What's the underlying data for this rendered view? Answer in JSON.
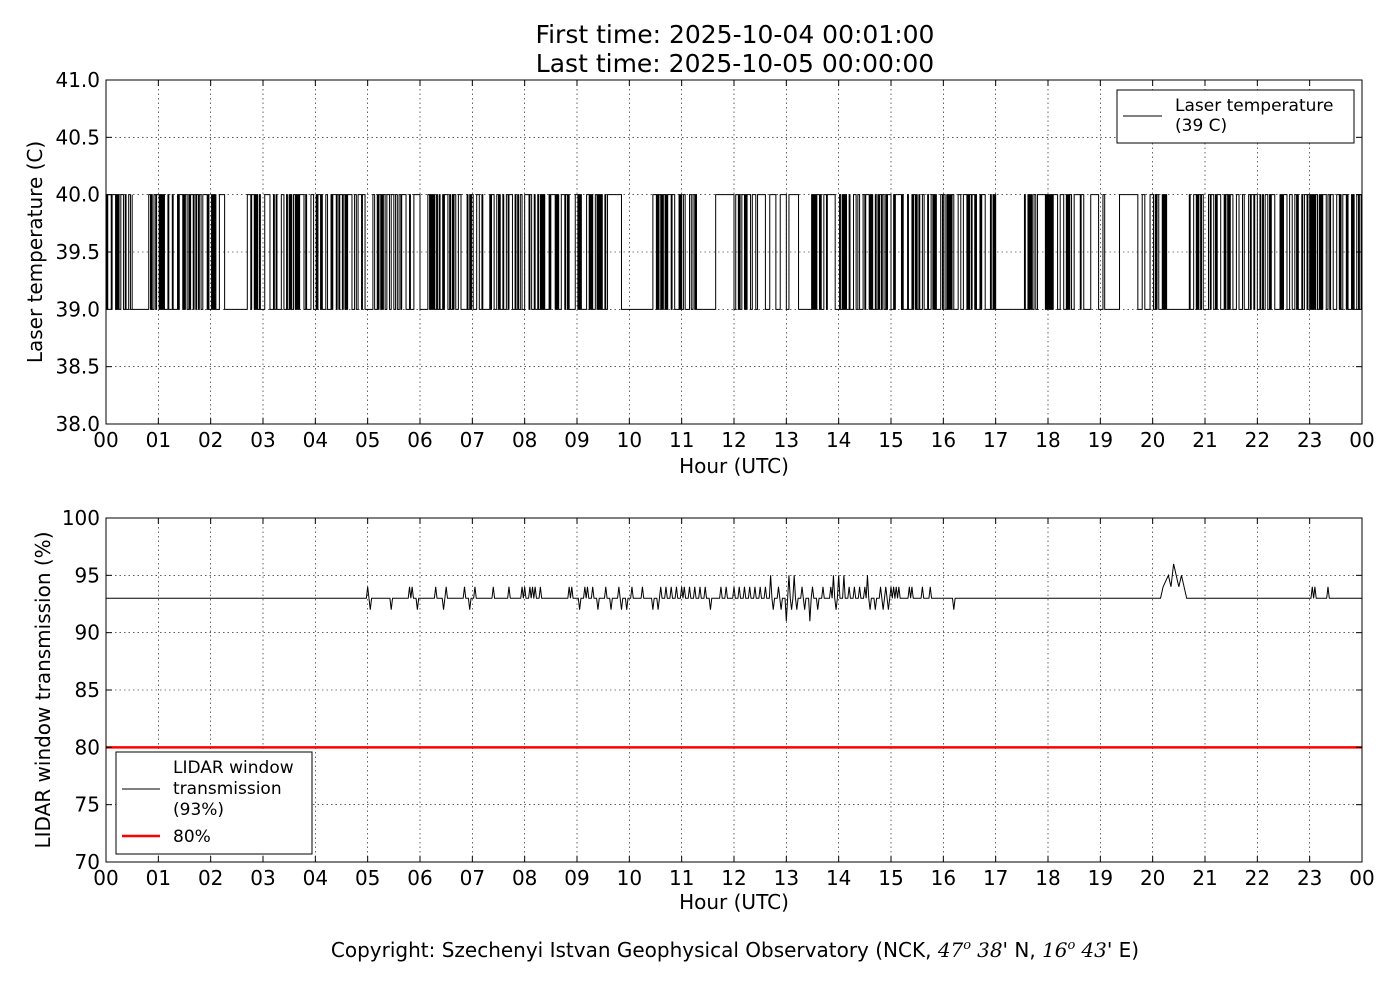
{
  "title": {
    "line1": "First time: 2025-10-04 00:01:00",
    "line2": "Last time: 2025-10-05 00:00:00"
  },
  "copyright": {
    "prefix": "Copyright: Szechenyi Istvan Geophysical Observatory (NCK, ",
    "lat_deg": "47",
    "deg_symbol": "o",
    "lat_min": "38",
    "lat_suffix": "' N, ",
    "lon_deg": "16",
    "lon_min": "43",
    "lon_suffix": "' E)"
  },
  "chart_data": [
    {
      "type": "line",
      "xlabel": "Hour (UTC)",
      "ylabel": "Laser temperature (C)",
      "xlim": [
        0,
        24
      ],
      "ylim": [
        38.0,
        41.0
      ],
      "x_ticks": [
        "00",
        "01",
        "02",
        "03",
        "04",
        "05",
        "06",
        "07",
        "08",
        "09",
        "10",
        "11",
        "12",
        "13",
        "14",
        "15",
        "16",
        "17",
        "18",
        "19",
        "20",
        "21",
        "22",
        "23",
        "00"
      ],
      "y_ticks": [
        "38.0",
        "38.5",
        "39.0",
        "39.5",
        "40.0",
        "40.5",
        "41.0"
      ],
      "grid": true,
      "legend_position": "top-right",
      "legend": [
        {
          "line1": "Laser temperature",
          "line2": "(39 C)",
          "color": "#000000"
        }
      ],
      "series": [
        {
          "description_values": "laser temperature switching between 39.0 and 40.0 C",
          "low": 39.0,
          "high": 40.0,
          "color": "#000000",
          "segments": [
            {
              "x0": 0.0,
              "x1": 0.5,
              "mode": "dense"
            },
            {
              "x0": 0.5,
              "x1": 0.75,
              "mode": "low"
            },
            {
              "x0": 0.75,
              "x1": 2.3,
              "mode": "dense"
            },
            {
              "x0": 2.3,
              "x1": 2.7,
              "mode": "low"
            },
            {
              "x0": 2.7,
              "x1": 4.5,
              "mode": "dense"
            },
            {
              "x0": 4.5,
              "x1": 6.0,
              "mode": "dense"
            },
            {
              "x0": 6.0,
              "x1": 6.15,
              "mode": "low"
            },
            {
              "x0": 6.15,
              "x1": 9.6,
              "mode": "dense"
            },
            {
              "x0": 9.6,
              "x1": 9.85,
              "mode": "high"
            },
            {
              "x0": 9.85,
              "x1": 10.45,
              "mode": "low"
            },
            {
              "x0": 10.45,
              "x1": 11.3,
              "mode": "dense"
            },
            {
              "x0": 11.3,
              "x1": 11.65,
              "mode": "low"
            },
            {
              "x0": 11.65,
              "x1": 12.0,
              "mode": "high"
            },
            {
              "x0": 12.0,
              "x1": 12.5,
              "mode": "dense"
            },
            {
              "x0": 12.5,
              "x1": 13.4,
              "mode": "sparse"
            },
            {
              "x0": 13.4,
              "x1": 17.0,
              "mode": "dense"
            },
            {
              "x0": 17.0,
              "x1": 17.55,
              "mode": "low"
            },
            {
              "x0": 17.55,
              "x1": 18.45,
              "mode": "dense"
            },
            {
              "x0": 18.45,
              "x1": 20.0,
              "mode": "sparse"
            },
            {
              "x0": 20.0,
              "x1": 20.3,
              "mode": "dense"
            },
            {
              "x0": 20.3,
              "x1": 20.7,
              "mode": "low"
            },
            {
              "x0": 20.7,
              "x1": 24.0,
              "mode": "dense"
            }
          ]
        }
      ]
    },
    {
      "type": "line",
      "xlabel": "Hour (UTC)",
      "ylabel": "LIDAR window transmission (%)",
      "xlim": [
        0,
        24
      ],
      "ylim": [
        70,
        100
      ],
      "x_ticks": [
        "00",
        "01",
        "02",
        "03",
        "04",
        "05",
        "06",
        "07",
        "08",
        "09",
        "10",
        "11",
        "12",
        "13",
        "14",
        "15",
        "16",
        "17",
        "18",
        "19",
        "20",
        "21",
        "22",
        "23",
        "00"
      ],
      "y_ticks": [
        "70",
        "75",
        "80",
        "85",
        "90",
        "95",
        "100"
      ],
      "grid": true,
      "legend_position": "bottom-left",
      "legend": [
        {
          "line1": "LIDAR window",
          "line2": "transmission",
          "line3": "(93%)",
          "color": "#000000"
        },
        {
          "line1": "80%",
          "color": "#ff0000"
        }
      ],
      "series": [
        {
          "baseline": 93,
          "color": "#000000",
          "spikes": [
            [
              5.0,
              94
            ],
            [
              5.05,
              92
            ],
            [
              5.45,
              92
            ],
            [
              5.8,
              94
            ],
            [
              5.85,
              94
            ],
            [
              5.95,
              92
            ],
            [
              6.3,
              94
            ],
            [
              6.45,
              92
            ],
            [
              6.5,
              94
            ],
            [
              6.85,
              94
            ],
            [
              6.95,
              92
            ],
            [
              7.05,
              94
            ],
            [
              7.4,
              94
            ],
            [
              7.7,
              94
            ],
            [
              7.95,
              94
            ],
            [
              8.0,
              94
            ],
            [
              8.1,
              94
            ],
            [
              8.15,
              94
            ],
            [
              8.2,
              94
            ],
            [
              8.3,
              94
            ],
            [
              8.85,
              94
            ],
            [
              8.9,
              94
            ],
            [
              9.05,
              92
            ],
            [
              9.15,
              94
            ],
            [
              9.2,
              94
            ],
            [
              9.3,
              94
            ],
            [
              9.4,
              92
            ],
            [
              9.55,
              94
            ],
            [
              9.65,
              92
            ],
            [
              9.8,
              94
            ],
            [
              9.85,
              92
            ],
            [
              9.95,
              92
            ],
            [
              10.05,
              94
            ],
            [
              10.25,
              94
            ],
            [
              10.45,
              92
            ],
            [
              10.55,
              92
            ],
            [
              10.6,
              94
            ],
            [
              10.7,
              94
            ],
            [
              10.8,
              94
            ],
            [
              10.9,
              94
            ],
            [
              11.0,
              94
            ],
            [
              11.05,
              94
            ],
            [
              11.15,
              94
            ],
            [
              11.25,
              94
            ],
            [
              11.35,
              94
            ],
            [
              11.45,
              94
            ],
            [
              11.55,
              92
            ],
            [
              11.75,
              94
            ],
            [
              11.85,
              94
            ],
            [
              12.0,
              94
            ],
            [
              12.1,
              94
            ],
            [
              12.2,
              94
            ],
            [
              12.3,
              94
            ],
            [
              12.4,
              94
            ],
            [
              12.5,
              94
            ],
            [
              12.6,
              94
            ],
            [
              12.7,
              95
            ],
            [
              12.75,
              92
            ],
            [
              12.85,
              94
            ],
            [
              12.9,
              92
            ],
            [
              13.0,
              91
            ],
            [
              13.05,
              95
            ],
            [
              13.1,
              92
            ],
            [
              13.15,
              95
            ],
            [
              13.2,
              92
            ],
            [
              13.3,
              94
            ],
            [
              13.35,
              92
            ],
            [
              13.45,
              91
            ],
            [
              13.5,
              94
            ],
            [
              13.6,
              92
            ],
            [
              13.7,
              94
            ],
            [
              13.85,
              94
            ],
            [
              13.9,
              95
            ],
            [
              13.95,
              92
            ],
            [
              14.0,
              95
            ],
            [
              14.1,
              95
            ],
            [
              14.2,
              94
            ],
            [
              14.3,
              94
            ],
            [
              14.4,
              94
            ],
            [
              14.5,
              94
            ],
            [
              14.55,
              95
            ],
            [
              14.6,
              92
            ],
            [
              14.7,
              92
            ],
            [
              14.8,
              94
            ],
            [
              14.85,
              92
            ],
            [
              14.9,
              94
            ],
            [
              14.95,
              92
            ],
            [
              15.0,
              94
            ],
            [
              15.05,
              94
            ],
            [
              15.1,
              94
            ],
            [
              15.15,
              94
            ],
            [
              15.35,
              94
            ],
            [
              15.4,
              94
            ],
            [
              15.6,
              94
            ],
            [
              15.75,
              94
            ],
            [
              16.2,
              92
            ],
            [
              20.2,
              95
            ],
            [
              20.3,
              95
            ],
            [
              20.4,
              96
            ],
            [
              20.5,
              95
            ],
            [
              20.55,
              94
            ],
            [
              23.05,
              94
            ],
            [
              23.1,
              94
            ],
            [
              23.35,
              94
            ]
          ],
          "plateau": [
            [
              20.15,
              93
            ],
            [
              20.2,
              94
            ],
            [
              20.3,
              95
            ],
            [
              20.35,
              94
            ],
            [
              20.4,
              96
            ],
            [
              20.45,
              95
            ],
            [
              20.5,
              94
            ],
            [
              20.55,
              95
            ],
            [
              20.6,
              94
            ],
            [
              20.65,
              93
            ]
          ]
        },
        {
          "constant": 80,
          "color": "#ff0000"
        }
      ]
    }
  ]
}
